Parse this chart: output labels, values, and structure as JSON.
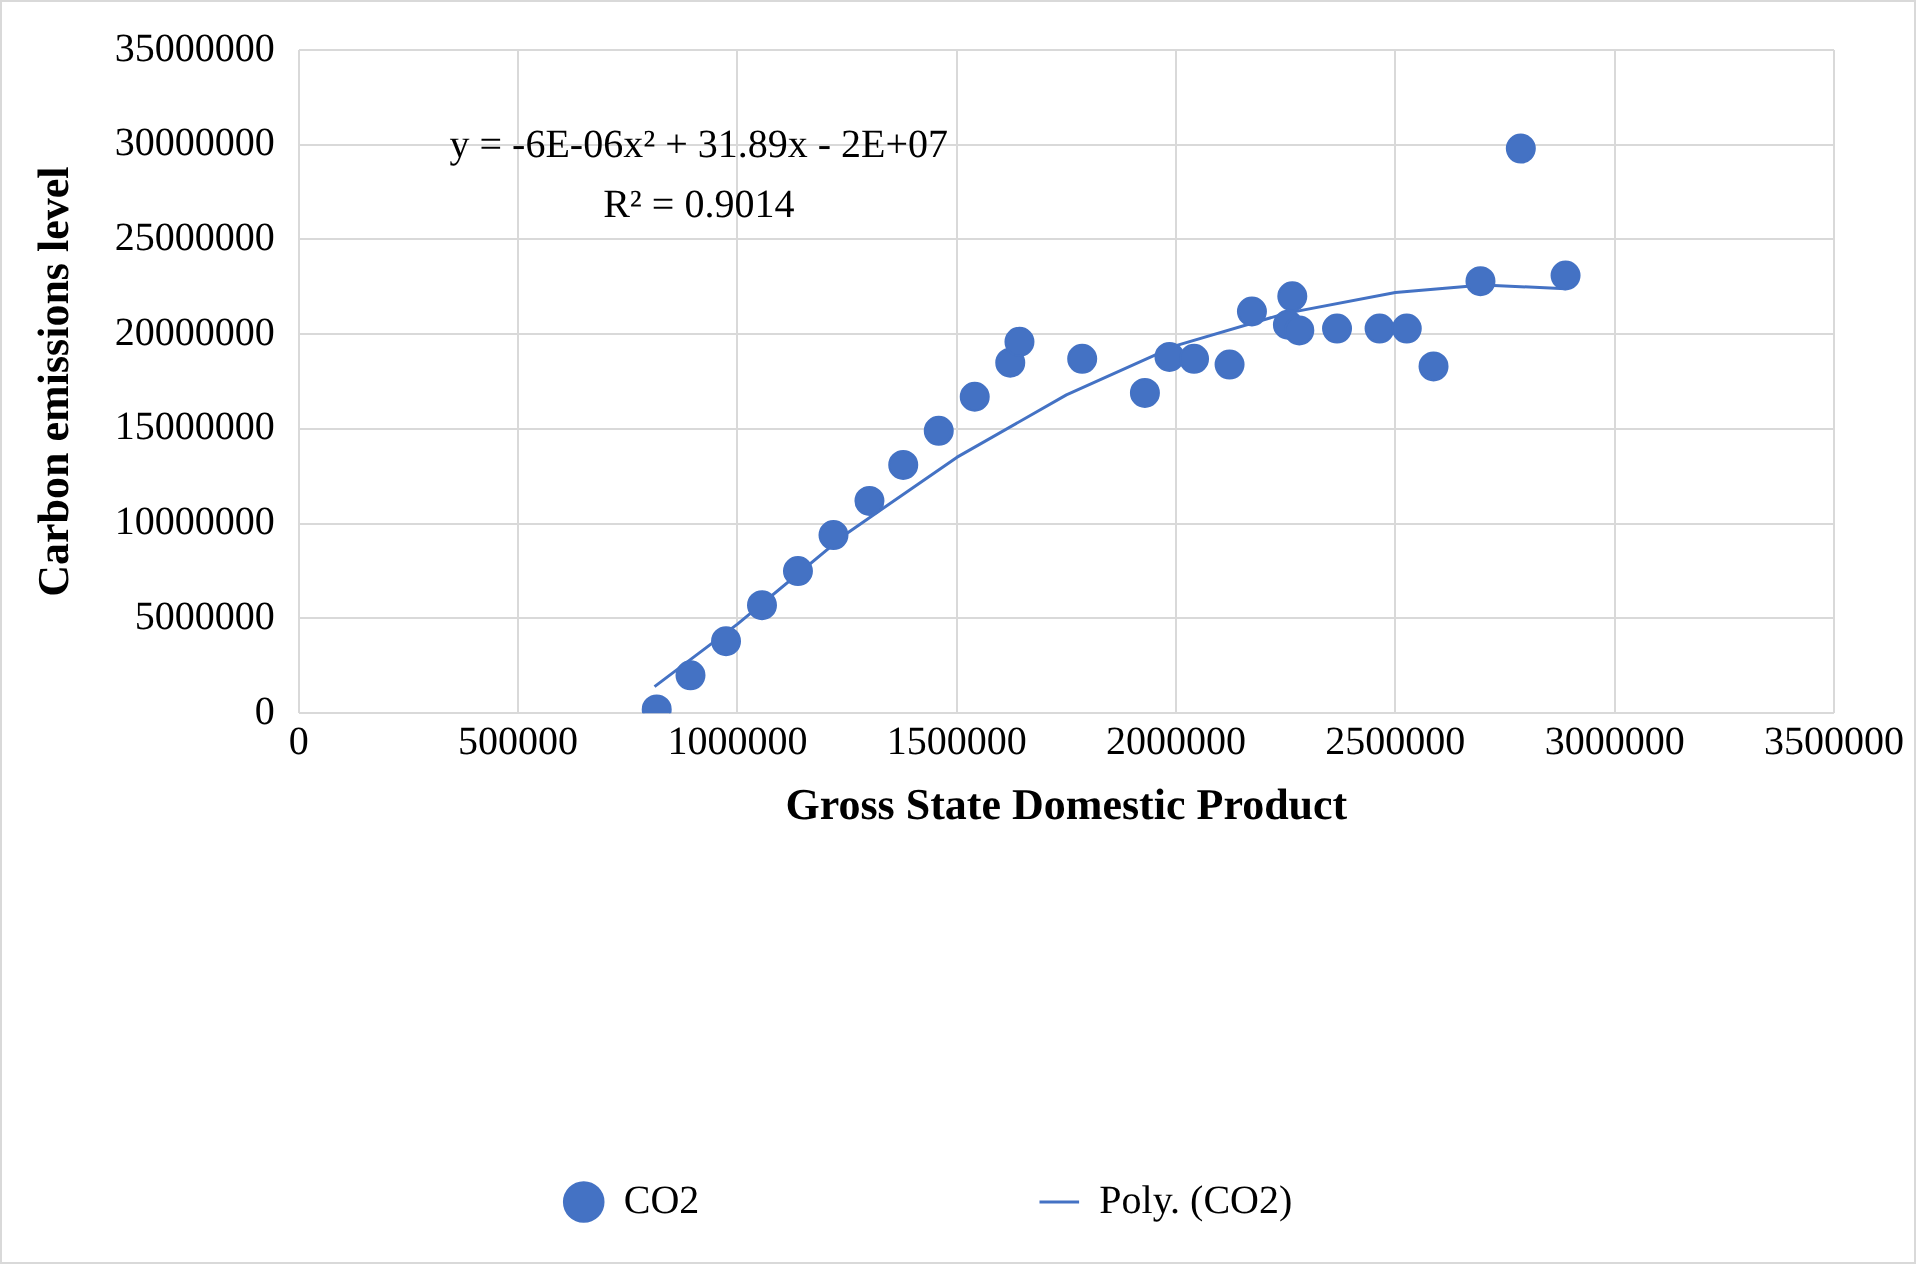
{
  "chart_data": {
    "type": "scatter",
    "xlabel": "Gross State Domestic Product",
    "ylabel": "Carbon emissions level",
    "annotations": [
      "y = -6E-06x² + 31.89x - 2E+07",
      "R² = 0.9014"
    ],
    "xlim": [
      0,
      3500000
    ],
    "xticks": [
      0,
      500000,
      1000000,
      1500000,
      2000000,
      2500000,
      3000000,
      3500000
    ],
    "ylim": [
      0,
      35000000
    ],
    "yticks": [
      0,
      5000000,
      10000000,
      15000000,
      20000000,
      25000000,
      30000000,
      35000000
    ],
    "grid": true,
    "legend": "bottom",
    "series": [
      {
        "name": "CO2",
        "color": "#4472c4",
        "marker": "circle",
        "x": [
          816000,
          893000,
          974000,
          1056000,
          1138000,
          1219000,
          1301000,
          1378000,
          1459000,
          1541000,
          1622000,
          1643000,
          1786000,
          1929000,
          1985000,
          2041000,
          2122000,
          2173000,
          2265000,
          2255000,
          2281000,
          2367000,
          2464000,
          2526000,
          2587000,
          2694000,
          2786000,
          2888000
        ],
        "values": [
          200000,
          2000000,
          3800000,
          5700000,
          7500000,
          9400000,
          11200000,
          13100000,
          14900000,
          16700000,
          18500000,
          19600000,
          18700000,
          16900000,
          18800000,
          18700000,
          18400000,
          21200000,
          22000000,
          20500000,
          20200000,
          20300000,
          20300000,
          20300000,
          18300000,
          22800000,
          29800000,
          23100000
        ]
      },
      {
        "name": "Poly. (CO2)",
        "type": "line",
        "color": "#4472c4",
        "marker": "none",
        "line_style": "solid",
        "x": [
          811000,
          1000000,
          1250000,
          1500000,
          1750000,
          2000000,
          2250000,
          2500000,
          2700000,
          2888000
        ],
        "values": [
          1400000,
          4700000,
          9500000,
          13500000,
          16800000,
          19400000,
          21100000,
          22200000,
          22600000,
          22400000
        ]
      }
    ]
  }
}
